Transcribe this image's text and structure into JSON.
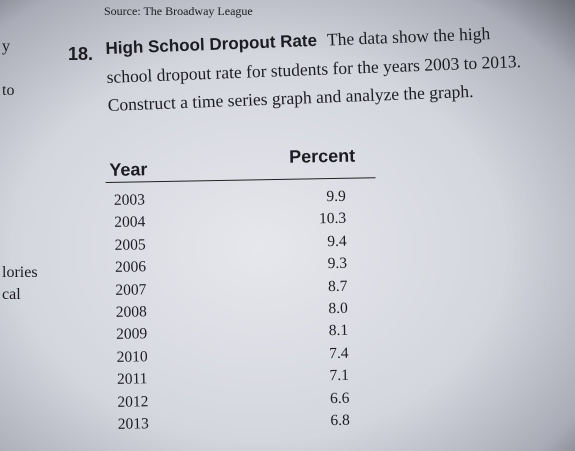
{
  "source": "Source: The Broadway League",
  "margin": [
    "y",
    "to",
    "lories",
    "cal"
  ],
  "exercise": {
    "number": "18.",
    "title": "High School Dropout Rate",
    "text": "The data show the high school dropout rate for students for the years 2003 to 2013. Construct a time series graph and analyze the graph."
  },
  "table": {
    "columns": [
      "Year",
      "Percent"
    ],
    "rows": [
      [
        "2003",
        "9.9"
      ],
      [
        "2004",
        "10.3"
      ],
      [
        "2005",
        "9.4"
      ],
      [
        "2006",
        "9.3"
      ],
      [
        "2007",
        "8.7"
      ],
      [
        "2008",
        "8.0"
      ],
      [
        "2009",
        "8.1"
      ],
      [
        "2010",
        "7.4"
      ],
      [
        "2011",
        "7.1"
      ],
      [
        "2012",
        "6.6"
      ],
      [
        "2013",
        "6.8"
      ]
    ]
  }
}
